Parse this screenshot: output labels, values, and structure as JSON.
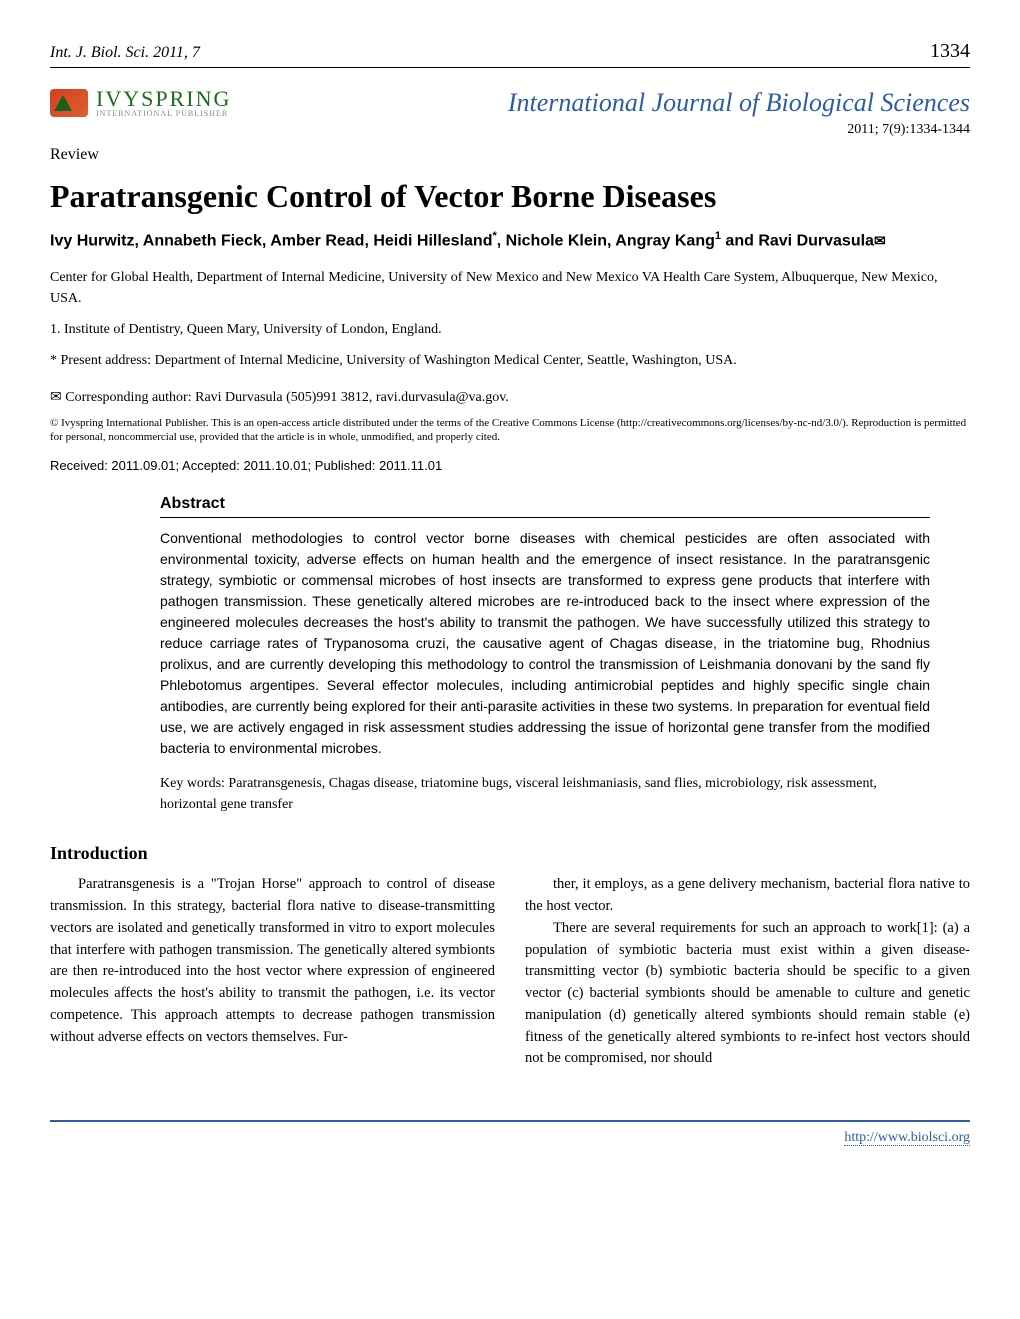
{
  "header": {
    "journal_abbrev": "Int. J. Biol. Sci. 2011, 7",
    "page_number": "1334"
  },
  "publisher": {
    "name": "IVYSPRING",
    "subtitle": "INTERNATIONAL PUBLISHER"
  },
  "journal": {
    "title": "International Journal of Biological Sciences",
    "issue": "2011; 7(9):1334-1344"
  },
  "article": {
    "type": "Review",
    "title": "Paratransgenic Control of Vector Borne Diseases",
    "authors_html": "Ivy Hurwitz, Annabeth Fieck, Amber Read, Heidi Hillesland<sup>*</sup>, Nichole Klein, Angray Kang<sup>1</sup> and Ravi Durvasula<span class='envelope'>✉</span>",
    "affiliations": [
      "Center for Global Health, Department of Internal Medicine, University of New Mexico and New Mexico VA Health Care System, Albuquerque, New Mexico, USA.",
      "1. Institute of Dentistry, Queen Mary, University of London, England.",
      "* Present address: Department of Internal Medicine, University of Washington Medical Center, Seattle, Washington, USA."
    ],
    "corresponding": "✉ Corresponding author: Ravi Durvasula (505)991 3812, ravi.durvasula@va.gov.",
    "license": "© Ivyspring International Publisher. This is an open-access article distributed under the terms of the Creative Commons License (http://creativecommons.org/licenses/by-nc-nd/3.0/). Reproduction is permitted for personal, noncommercial use, provided that the article is in whole, unmodified, and properly cited.",
    "dates": "Received: 2011.09.01; Accepted: 2011.10.01; Published: 2011.11.01"
  },
  "abstract": {
    "heading": "Abstract",
    "text": "Conventional methodologies to control vector borne diseases with chemical pesticides are often associated with environmental toxicity, adverse effects on human health and the emergence of insect resistance. In the paratransgenic strategy, symbiotic or commensal microbes of host insects are transformed to express gene products that interfere with pathogen transmission. These genetically altered microbes are re-introduced back to the insect where expression of the engineered molecules decreases the host's ability to transmit the pathogen. We have successfully utilized this strategy to reduce carriage rates of Trypanosoma cruzi, the causative agent of Chagas disease, in the triatomine bug, Rhodnius prolixus, and are currently developing this methodology to control the transmission of Leishmania donovani by the sand fly Phlebotomus argentipes. Several effector molecules, including antimicrobial peptides and highly specific single chain antibodies, are currently being explored for their anti-parasite activities in these two systems. In preparation for eventual field use, we are actively engaged in risk assessment studies addressing the issue of horizontal gene transfer from the modified bacteria to environmental microbes.",
    "keywords": "Key words: Paratransgenesis, Chagas disease, triatomine bugs, visceral leishmaniasis, sand flies, microbiology, risk assessment, horizontal gene transfer"
  },
  "intro": {
    "heading": "Introduction",
    "col1_p1": "Paratransgenesis is a \"Trojan Horse\" approach to control of disease transmission. In this strategy, bacterial flora native to disease-transmitting vectors are isolated and genetically transformed in vitro to export molecules that interfere with pathogen transmission. The genetically altered symbionts are then re-introduced into the host vector where expression of engineered molecules affects the host's ability to transmit the pathogen, i.e. its vector competence. This approach attempts to decrease pathogen transmission without adverse effects on vectors themselves. Fur-",
    "col2_p1": "ther, it employs, as a gene delivery mechanism, bacterial flora native to the host vector.",
    "col2_p2": "There are several requirements for such an approach to work[1]: (a) a population of symbiotic bacteria must exist within a given disease-transmitting vector (b) symbiotic bacteria should be specific to a given vector (c) bacterial symbionts should be amenable to culture and genetic manipulation (d) genetically altered symbionts should remain stable (e) fitness of the genetically altered symbionts to re-infect host vectors should not be compromised, nor should"
  },
  "footer": {
    "url": "http://www.biolsci.org"
  },
  "colors": {
    "link": "#2b5ca8",
    "publisher": "#1a6b1a"
  }
}
